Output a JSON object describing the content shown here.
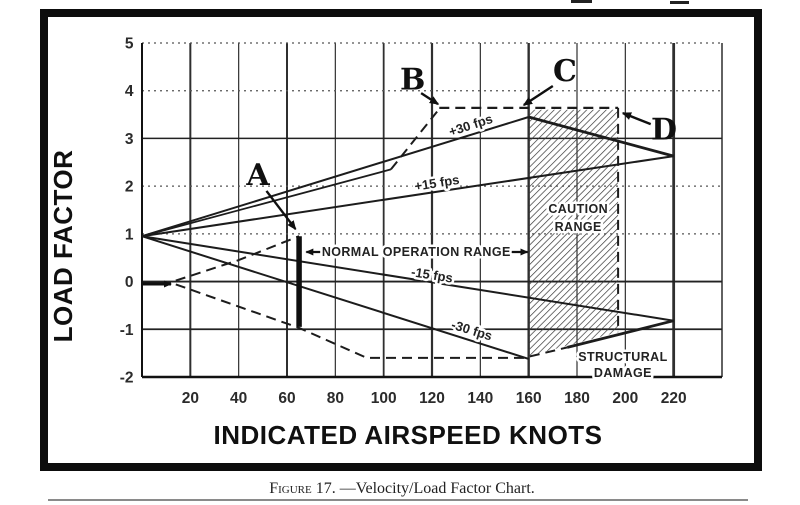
{
  "page": {
    "caption": {
      "prefix": "Figure 17.",
      "rest": " —Velocity/Load Factor Chart."
    }
  },
  "chart_data": {
    "type": "line",
    "title": "Velocity/Load Factor Chart",
    "xlabel": "INDICATED AIRSPEED KNOTS",
    "ylabel": "LOAD FACTOR",
    "xlim": [
      0,
      240
    ],
    "ylim": [
      -2,
      5
    ],
    "x_ticks": [
      20,
      40,
      60,
      80,
      100,
      120,
      140,
      160,
      180,
      200,
      220
    ],
    "y_ticks": [
      5,
      4,
      3,
      2,
      1,
      0,
      -1,
      -2
    ],
    "grid": "on",
    "legend": "none",
    "ink_color": "#1c1c1c",
    "series": [
      {
        "name": "stall-line-upper-solid",
        "style": "solid",
        "points": [
          [
            0,
            0.95
          ],
          [
            103,
            2.35
          ]
        ]
      },
      {
        "name": "stall-line-upper-dashed",
        "style": "dashed",
        "points": [
          [
            103,
            2.35
          ],
          [
            123,
            3.62
          ]
        ]
      },
      {
        "name": "positive-limit-load-dashed",
        "style": "dashed",
        "points": [
          [
            123,
            3.64
          ],
          [
            197,
            3.64
          ]
        ]
      },
      {
        "name": "gust-line-plus-30-fps",
        "style": "solid",
        "label": "+30 fps",
        "points": [
          [
            0,
            0.95
          ],
          [
            160,
            3.45
          ]
        ]
      },
      {
        "name": "upper-envelope-descending",
        "style": "solid",
        "points": [
          [
            160,
            3.45
          ],
          [
            220,
            2.63
          ]
        ]
      },
      {
        "name": "gust-line-plus-15-fps",
        "style": "solid",
        "label": "+15 fps",
        "points": [
          [
            0,
            0.95
          ],
          [
            220,
            2.63
          ]
        ]
      },
      {
        "name": "gust-line-minus-15-fps",
        "style": "solid",
        "label": "-15 fps",
        "points": [
          [
            0,
            0.95
          ],
          [
            220,
            -0.82
          ]
        ]
      },
      {
        "name": "gust-line-minus-30-fps",
        "style": "solid",
        "label": "-30 fps",
        "points": [
          [
            0,
            0.95
          ],
          [
            160,
            -1.62
          ]
        ]
      },
      {
        "name": "stall-line-lower-rising-dashed",
        "style": "dashed",
        "points": [
          [
            14,
            0.02
          ],
          [
            40,
            0.45
          ],
          [
            65,
            0.95
          ]
        ]
      },
      {
        "name": "negative-stall-dashed",
        "style": "dashed",
        "points": [
          [
            14,
            -0.06
          ],
          [
            65,
            -0.97
          ],
          [
            93,
            -1.6
          ],
          [
            158,
            -1.6
          ],
          [
            176,
            -1.38
          ]
        ]
      },
      {
        "name": "lower-envelope-ascending",
        "style": "solid",
        "points": [
          [
            176,
            -1.38
          ],
          [
            220,
            -0.82
          ]
        ]
      },
      {
        "name": "caution-right-boundary-dashed",
        "style": "dashed",
        "points": [
          [
            197,
            3.64
          ],
          [
            197,
            -1.06
          ]
        ]
      }
    ],
    "gust_labels": [
      {
        "text": "+30 fps",
        "x": 136,
        "y": 3.28,
        "angle": -18
      },
      {
        "text": "+15 fps",
        "x": 122,
        "y": 2.07,
        "angle": -9
      },
      {
        "text": "-15 fps",
        "x": 120,
        "y": 0.14,
        "angle": 9
      },
      {
        "text": "-30 fps",
        "x": 136.5,
        "y": -1.02,
        "angle": 17
      }
    ],
    "caution_region": {
      "polygon": [
        [
          160,
          3.6
        ],
        [
          197,
          3.6
        ],
        [
          197,
          -1.06
        ],
        [
          160,
          -1.56
        ]
      ],
      "label_lines": [
        "CAUTION",
        "RANGE"
      ],
      "label_x": 180.5,
      "label_y1": 1.52,
      "label_y2": 1.14
    },
    "structural_damage": {
      "label_lines": [
        "STRUCTURAL",
        "DAMAGE"
      ],
      "label_x": 199,
      "label_y1": -1.58,
      "label_y2": -1.92
    },
    "normal_operation": {
      "text": "NORMAL OPERATION RANGE",
      "text_x": 113.5,
      "text_y": 0.62,
      "bar_x": 65,
      "bar_top": 0.95,
      "bar_bottom": -0.95,
      "arrow_left_tail_x": 74.5,
      "arrow_left_tip_x": 68,
      "arrow_right_tail_x": 152.5,
      "arrow_right_tip_x": 159.5
    },
    "point_labels": [
      {
        "id": "A",
        "text": "A",
        "label_x": 48,
        "label_y": 2.22,
        "arrow": [
          [
            51.5,
            1.9
          ],
          [
            63.5,
            1.1
          ]
        ]
      },
      {
        "id": "B",
        "text": "B",
        "label_x": 112,
        "label_y": 4.22,
        "arrow": [
          [
            115.5,
            3.95
          ],
          [
            122.5,
            3.72
          ]
        ]
      },
      {
        "id": "C",
        "text": "C",
        "label_x": 175,
        "label_y": 4.4,
        "arrow": [
          [
            170,
            4.1
          ],
          [
            158,
            3.7
          ]
        ]
      },
      {
        "id": "D",
        "text": "D",
        "label_x": 216,
        "label_y": 3.18,
        "arrow": [
          [
            210.5,
            3.3
          ],
          [
            199,
            3.53
          ]
        ]
      }
    ],
    "stall_speed_marker": {
      "from": [
        0,
        -0.05
      ],
      "to": [
        12,
        -0.05
      ]
    }
  }
}
